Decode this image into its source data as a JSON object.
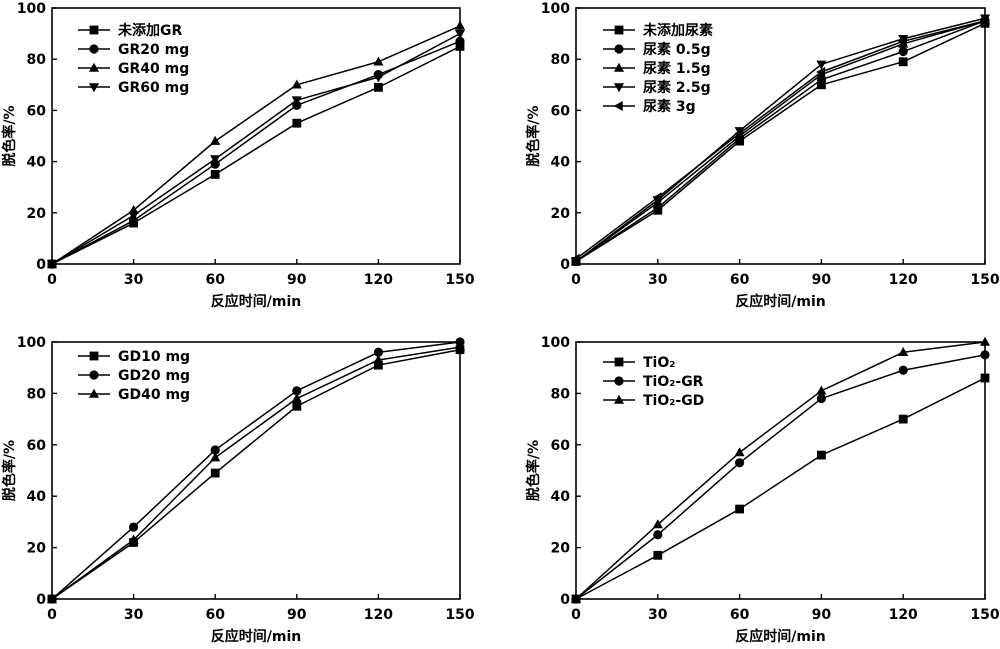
{
  "chart_data": [
    {
      "type": "line",
      "x": [
        0,
        30,
        60,
        90,
        120,
        150
      ],
      "xlabel": "反应时间/min",
      "ylabel": "脱色率/%",
      "xlim": [
        0,
        150
      ],
      "ylim": [
        0,
        100
      ],
      "xticks": [
        "0",
        "30",
        "60",
        "90",
        "120",
        "150"
      ],
      "yticks": [
        "0",
        "20",
        "40",
        "60",
        "80",
        "100"
      ],
      "legend_position": "top-left",
      "series": [
        {
          "name": "未添加GR",
          "marker": "square",
          "values": [
            0,
            16,
            35,
            55,
            69,
            85
          ]
        },
        {
          "name": "GR20 mg",
          "marker": "circle",
          "values": [
            0,
            17,
            39,
            62,
            74,
            87
          ]
        },
        {
          "name": "GR40 mg",
          "marker": "triangle-up",
          "values": [
            0,
            21,
            48,
            70,
            79,
            93
          ]
        },
        {
          "name": "GR60 mg",
          "marker": "triangle-down",
          "values": [
            0,
            19,
            41,
            64,
            73,
            90
          ]
        }
      ]
    },
    {
      "type": "line",
      "x": [
        0,
        30,
        60,
        90,
        120,
        150
      ],
      "xlabel": "反应时间/min",
      "ylabel": "脱色率/%",
      "xlim": [
        0,
        150
      ],
      "ylim": [
        0,
        100
      ],
      "xticks": [
        "0",
        "30",
        "60",
        "90",
        "120",
        "150"
      ],
      "yticks": [
        "0",
        "20",
        "40",
        "60",
        "80",
        "100"
      ],
      "legend_position": "top-left",
      "series": [
        {
          "name": "未添加尿素",
          "marker": "square",
          "values": [
            1,
            21,
            48,
            70,
            79,
            94
          ]
        },
        {
          "name": "尿素 0.5g",
          "marker": "circle",
          "values": [
            1,
            22,
            49,
            72,
            83,
            95
          ]
        },
        {
          "name": "尿素 1.5g",
          "marker": "triangle-up",
          "values": [
            1,
            24,
            50,
            74,
            86,
            95
          ]
        },
        {
          "name": "尿素 2.5g",
          "marker": "triangle-down",
          "values": [
            1,
            25,
            52,
            78,
            88,
            96
          ]
        },
        {
          "name": "尿素 3g",
          "marker": "triangle-left",
          "values": [
            2,
            26,
            51,
            75,
            87,
            95
          ]
        }
      ]
    },
    {
      "type": "line",
      "x": [
        0,
        30,
        60,
        90,
        120,
        150
      ],
      "xlabel": "反应时间/min",
      "ylabel": "脱色率/%",
      "xlim": [
        0,
        150
      ],
      "ylim": [
        0,
        100
      ],
      "xticks": [
        "0",
        "30",
        "60",
        "90",
        "120",
        "150"
      ],
      "yticks": [
        "0",
        "20",
        "40",
        "60",
        "80",
        "100"
      ],
      "legend_position": "top-left",
      "series": [
        {
          "name": "GD10 mg",
          "marker": "square",
          "values": [
            0,
            22,
            49,
            75,
            91,
            97
          ]
        },
        {
          "name": "GD20 mg",
          "marker": "circle",
          "values": [
            0,
            28,
            58,
            81,
            96,
            100
          ]
        },
        {
          "name": "GD40 mg",
          "marker": "triangle-up",
          "values": [
            0,
            23,
            55,
            78,
            93,
            98
          ]
        }
      ]
    },
    {
      "type": "line",
      "x": [
        0,
        30,
        60,
        90,
        120,
        150
      ],
      "xlabel": "反应时间/min",
      "ylabel": "脱色率/%",
      "xlim": [
        0,
        150
      ],
      "ylim": [
        0,
        100
      ],
      "xticks": [
        "0",
        "30",
        "60",
        "90",
        "120",
        "150"
      ],
      "yticks": [
        "0",
        "20",
        "40",
        "60",
        "80",
        "100"
      ],
      "legend_position": "top-left",
      "series": [
        {
          "name": "TiO₂",
          "marker": "square",
          "values": [
            0,
            17,
            35,
            56,
            70,
            86
          ]
        },
        {
          "name": "TiO₂-GR",
          "marker": "circle",
          "values": [
            0,
            25,
            53,
            78,
            89,
            95
          ]
        },
        {
          "name": "TiO₂-GD",
          "marker": "triangle-up",
          "values": [
            0,
            29,
            57,
            81,
            96,
            100
          ]
        }
      ]
    }
  ]
}
